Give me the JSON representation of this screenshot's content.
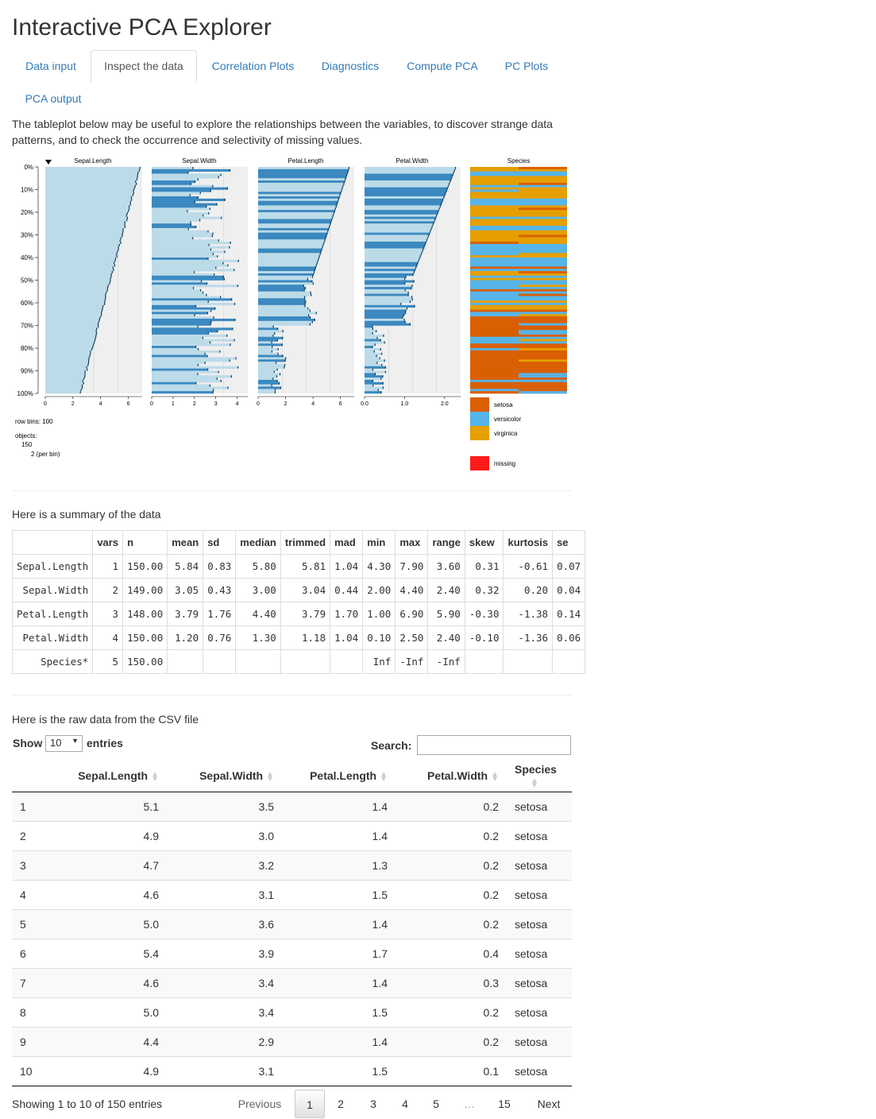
{
  "app": {
    "title": "Interactive PCA Explorer"
  },
  "tabs": [
    {
      "label": "Data input",
      "active": false
    },
    {
      "label": "Inspect the data",
      "active": true
    },
    {
      "label": "Correlation Plots",
      "active": false
    },
    {
      "label": "Diagnostics",
      "active": false
    },
    {
      "label": "Compute PCA",
      "active": false
    },
    {
      "label": "PC Plots",
      "active": false
    },
    {
      "label": "PCA output",
      "active": false
    }
  ],
  "intro": "The tableplot below may be useful to explore the relationships between the variables, to discover strange data patterns, and to check the occurrence and selectivity of missing values.",
  "tableplot": {
    "columns": [
      "Sepal.Length",
      "Sepal.Width",
      "Petal.Length",
      "Petal.Width",
      "Species"
    ],
    "y_ticks": [
      "0%",
      "10%",
      "20%",
      "30%",
      "40%",
      "50%",
      "60%",
      "70%",
      "80%",
      "90%",
      "100%"
    ],
    "axes": [
      [
        "0",
        "2",
        "4",
        "6"
      ],
      [
        "0",
        "1",
        "2",
        "3",
        "4"
      ],
      [
        "0",
        "2",
        "4",
        "6"
      ],
      [
        "0.0",
        "1.0",
        "2.0"
      ]
    ],
    "row_bins": "row bins: 100",
    "objects_label": "objects:",
    "objects_count": "150",
    "per_bin": "2 (per bin)",
    "legend": [
      {
        "label": "setosa",
        "color": "#d95f02"
      },
      {
        "label": "versicolor",
        "color": "#56b4e9"
      },
      {
        "label": "virginica",
        "color": "#e69f00"
      },
      {
        "label": "missing",
        "color": "#ff1a1a"
      }
    ],
    "colors": {
      "bar_light": "#bcdbe9",
      "bar_dark": "#3b89c0",
      "panel_bg": "#efefef"
    }
  },
  "summary": {
    "label": "Here is a summary of the data",
    "headers": [
      "",
      "vars",
      "n",
      "mean",
      "sd",
      "median",
      "trimmed",
      "mad",
      "min",
      "max",
      "range",
      "skew",
      "kurtosis",
      "se"
    ],
    "rows": [
      [
        "Sepal.Length",
        "1",
        "150.00",
        "5.84",
        "0.83",
        "5.80",
        "5.81",
        "1.04",
        "4.30",
        "7.90",
        "3.60",
        "0.31",
        "-0.61",
        "0.07"
      ],
      [
        "Sepal.Width",
        "2",
        "149.00",
        "3.05",
        "0.43",
        "3.00",
        "3.04",
        "0.44",
        "2.00",
        "4.40",
        "2.40",
        "0.32",
        "0.20",
        "0.04"
      ],
      [
        "Petal.Length",
        "3",
        "148.00",
        "3.79",
        "1.76",
        "4.40",
        "3.79",
        "1.70",
        "1.00",
        "6.90",
        "5.90",
        "-0.30",
        "-1.38",
        "0.14"
      ],
      [
        "Petal.Width",
        "4",
        "150.00",
        "1.20",
        "0.76",
        "1.30",
        "1.18",
        "1.04",
        "0.10",
        "2.50",
        "2.40",
        "-0.10",
        "-1.36",
        "0.06"
      ],
      [
        "Species*",
        "5",
        "150.00",
        "",
        "",
        "",
        "",
        "",
        "Inf",
        "-Inf",
        "-Inf",
        "",
        "",
        ""
      ]
    ]
  },
  "raw": {
    "label": "Here is the raw data from the CSV file",
    "show_label": "Show",
    "length_value": "10",
    "entries_label": "entries",
    "search_label": "Search:",
    "search_value": "",
    "headers": [
      "",
      "Sepal.Length",
      "Sepal.Width",
      "Petal.Length",
      "Petal.Width",
      "Species"
    ],
    "rows": [
      [
        "1",
        "5.1",
        "3.5",
        "1.4",
        "0.2",
        "setosa"
      ],
      [
        "2",
        "4.9",
        "3.0",
        "1.4",
        "0.2",
        "setosa"
      ],
      [
        "3",
        "4.7",
        "3.2",
        "1.3",
        "0.2",
        "setosa"
      ],
      [
        "4",
        "4.6",
        "3.1",
        "1.5",
        "0.2",
        "setosa"
      ],
      [
        "5",
        "5.0",
        "3.6",
        "1.4",
        "0.2",
        "setosa"
      ],
      [
        "6",
        "5.4",
        "3.9",
        "1.7",
        "0.4",
        "setosa"
      ],
      [
        "7",
        "4.6",
        "3.4",
        "1.4",
        "0.3",
        "setosa"
      ],
      [
        "8",
        "5.0",
        "3.4",
        "1.5",
        "0.2",
        "setosa"
      ],
      [
        "9",
        "4.4",
        "2.9",
        "1.4",
        "0.2",
        "setosa"
      ],
      [
        "10",
        "4.9",
        "3.1",
        "1.5",
        "0.1",
        "setosa"
      ]
    ],
    "info": "Showing 1 to 10 of 150 entries",
    "pagination": {
      "previous": "Previous",
      "pages": [
        "1",
        "2",
        "3",
        "4",
        "5",
        "…",
        "15"
      ],
      "current": "1",
      "next": "Next"
    }
  }
}
